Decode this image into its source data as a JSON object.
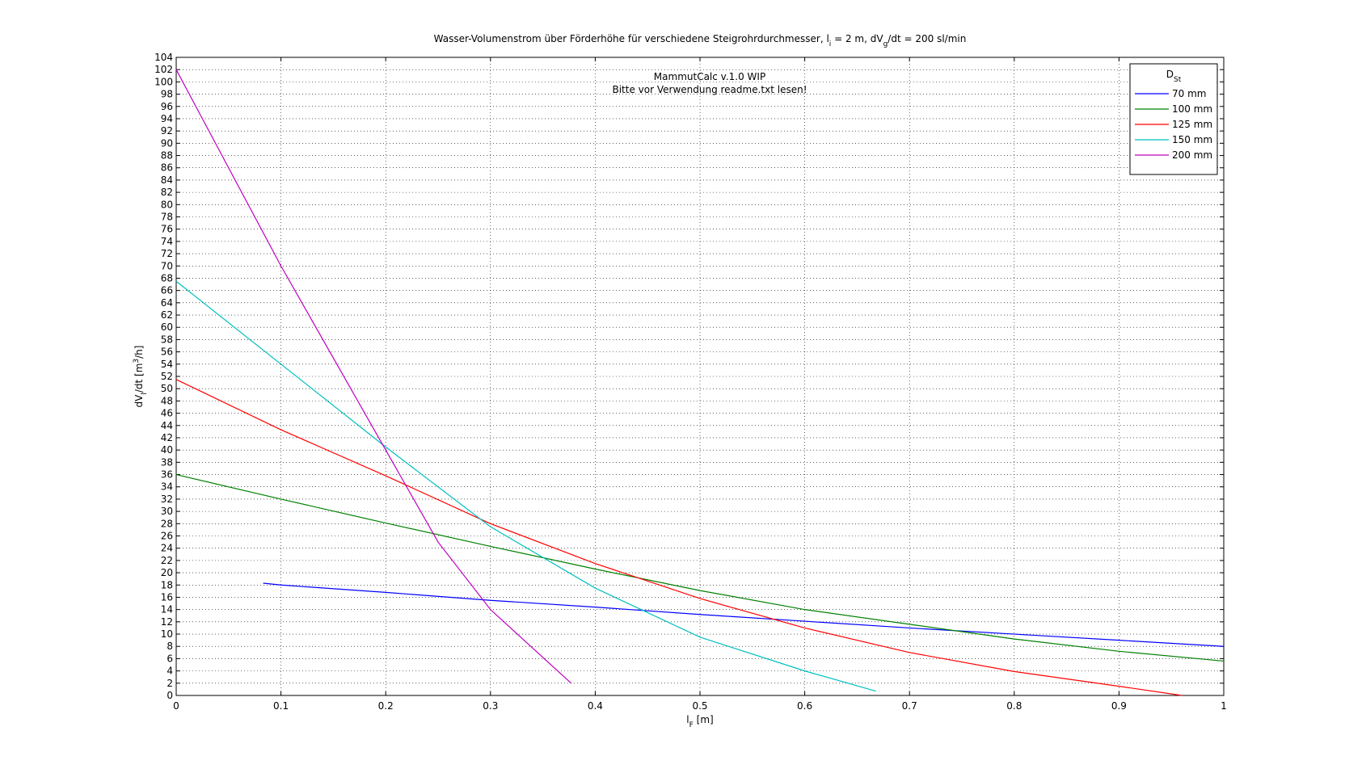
{
  "chart_data": {
    "type": "line",
    "title": [
      {
        "text": "Wasser-Volumenstrom über Förderhöhe für verschiedene Steigrohrdurchmesser, l"
      },
      {
        "text": "i",
        "sub": true
      },
      {
        "text": " = 2 m, dV"
      },
      {
        "text": "g",
        "sub": true
      },
      {
        "text": "/dt = 200 sl/min"
      }
    ],
    "xlabel": [
      {
        "text": "l"
      },
      {
        "text": "F",
        "sub": true
      },
      {
        "text": " [m]"
      }
    ],
    "ylabel": [
      {
        "text": "dV"
      },
      {
        "text": "l",
        "sub": true
      },
      {
        "text": "/dt [m"
      },
      {
        "text": "3",
        "sup": true
      },
      {
        "text": "/h]"
      }
    ],
    "annotations": [
      "MammutCalc v.1.0 WIP",
      "Bitte vor Verwendung readme.txt lesen!"
    ],
    "legend_title": [
      {
        "text": "D"
      },
      {
        "text": "St",
        "sub": true
      }
    ],
    "legend_position": "top-right",
    "grid": true,
    "xlim": [
      0,
      1
    ],
    "xticks": [
      0,
      0.1,
      0.2,
      0.3,
      0.4,
      0.5,
      0.6,
      0.7,
      0.8,
      0.9,
      1
    ],
    "ylim": [
      0,
      104
    ],
    "yticks": [
      0,
      2,
      4,
      6,
      8,
      10,
      12,
      14,
      16,
      18,
      20,
      22,
      24,
      26,
      28,
      30,
      32,
      34,
      36,
      38,
      40,
      42,
      44,
      46,
      48,
      50,
      52,
      54,
      56,
      58,
      60,
      62,
      64,
      66,
      68,
      70,
      72,
      74,
      76,
      78,
      80,
      82,
      84,
      86,
      88,
      90,
      92,
      94,
      96,
      98,
      100,
      102,
      104
    ],
    "series": [
      {
        "name": "70 mm",
        "color": "#0000ff",
        "x": [
          0.083,
          0.1,
          0.2,
          0.3,
          0.4,
          0.5,
          0.6,
          0.7,
          0.8,
          0.9,
          1.0
        ],
        "values": [
          18.3,
          18.0,
          16.8,
          15.5,
          14.4,
          13.2,
          12.1,
          11.0,
          10.0,
          9.0,
          8.0
        ]
      },
      {
        "name": "100 mm",
        "color": "#008000",
        "x": [
          0,
          0.1,
          0.2,
          0.3,
          0.4,
          0.5,
          0.6,
          0.7,
          0.8,
          0.9,
          1.0
        ],
        "values": [
          36,
          32,
          28.1,
          24.3,
          20.6,
          17.1,
          14.0,
          11.6,
          9.2,
          7.2,
          5.6
        ]
      },
      {
        "name": "125 mm",
        "color": "#ff0000",
        "x": [
          0,
          0.1,
          0.2,
          0.3,
          0.4,
          0.5,
          0.6,
          0.7,
          0.8,
          0.9,
          0.96
        ],
        "values": [
          51.5,
          43.3,
          35.8,
          28.0,
          21.5,
          15.8,
          11.0,
          7.0,
          3.9,
          1.5,
          0
        ]
      },
      {
        "name": "150 mm",
        "color": "#00bfbf",
        "x": [
          0,
          0.1,
          0.2,
          0.3,
          0.4,
          0.5,
          0.6,
          0.668
        ],
        "values": [
          67.5,
          54,
          40.5,
          27.5,
          17.5,
          9.5,
          4.0,
          0.7
        ]
      },
      {
        "name": "200 mm",
        "color": "#bf00bf",
        "x": [
          0,
          0.1,
          0.2,
          0.25,
          0.3,
          0.377
        ],
        "values": [
          102,
          70,
          40,
          25,
          14,
          2
        ]
      }
    ]
  }
}
